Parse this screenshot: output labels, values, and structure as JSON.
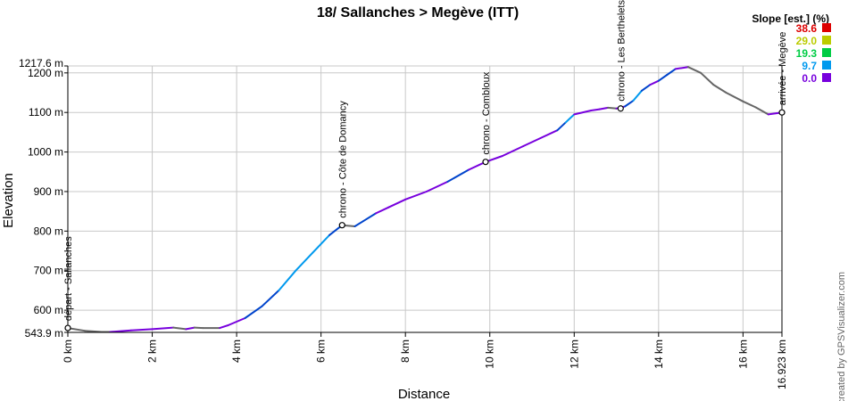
{
  "chart_data": {
    "type": "line",
    "title": "18/ Sallanches > Megève (ITT)",
    "xlabel": "Distance",
    "ylabel": "Elevation",
    "xlim": [
      0,
      16.923
    ],
    "ylim": [
      543.9,
      1217.6
    ],
    "x_ticks": [
      "0 km",
      "2 km",
      "4 km",
      "6 km",
      "8 km",
      "10 km",
      "12 km",
      "14 km",
      "16 km",
      "16.923 km"
    ],
    "y_ticks": [
      "543.9 m",
      "600 m",
      "700 m",
      "800 m",
      "900 m",
      "1000 m",
      "1100 m",
      "1200 m",
      "1217.6 m"
    ],
    "grid": true,
    "profile": {
      "x": [
        0,
        0.4,
        0.8,
        1.0,
        1.5,
        2.0,
        2.5,
        2.8,
        3.0,
        3.2,
        3.6,
        3.8,
        4.2,
        4.6,
        5.0,
        5.4,
        5.8,
        6.2,
        6.5,
        6.8,
        7.0,
        7.3,
        7.6,
        8.0,
        8.5,
        9.0,
        9.5,
        9.9,
        10.3,
        10.8,
        11.2,
        11.6,
        11.8,
        12.0,
        12.4,
        12.6,
        12.8,
        13.0,
        13.2,
        13.4,
        13.6,
        13.8,
        14.0,
        14.2,
        14.4,
        14.7,
        15.0,
        15.3,
        15.6,
        16.0,
        16.3,
        16.6,
        16.923
      ],
      "y": [
        555,
        548,
        545,
        545,
        549,
        552,
        556,
        552,
        556,
        555,
        555,
        562,
        580,
        610,
        650,
        700,
        745,
        790,
        815,
        812,
        825,
        845,
        860,
        880,
        900,
        925,
        955,
        975,
        990,
        1015,
        1035,
        1055,
        1075,
        1095,
        1105,
        1108,
        1112,
        1110,
        1115,
        1130,
        1155,
        1170,
        1180,
        1195,
        1210,
        1215,
        1200,
        1170,
        1150,
        1128,
        1113,
        1095,
        1100
      ]
    },
    "waypoints": [
      {
        "label": "départ - Sallanches",
        "x": 0,
        "y": 555
      },
      {
        "label": "chrono - Côte de Domancy",
        "x": 6.5,
        "y": 815
      },
      {
        "label": "chrono - Combloux",
        "x": 9.9,
        "y": 975
      },
      {
        "label": "chrono - Les Berthelets",
        "x": 13.1,
        "y": 1110
      },
      {
        "label": "arrivée - Megève",
        "x": 16.923,
        "y": 1100
      }
    ],
    "legend": {
      "title": "Slope [est.] (%)",
      "placement": "top-right",
      "items": [
        {
          "value": "38.6",
          "color": "#dd0000"
        },
        {
          "value": "29.0",
          "color": "#bbcc00"
        },
        {
          "value": "19.3",
          "color": "#00cc44"
        },
        {
          "value": "9.7",
          "color": "#0099ee"
        },
        {
          "value": "0.0",
          "color": "#7700dd"
        }
      ]
    }
  },
  "credit": "created by GPSVisualizer.com"
}
